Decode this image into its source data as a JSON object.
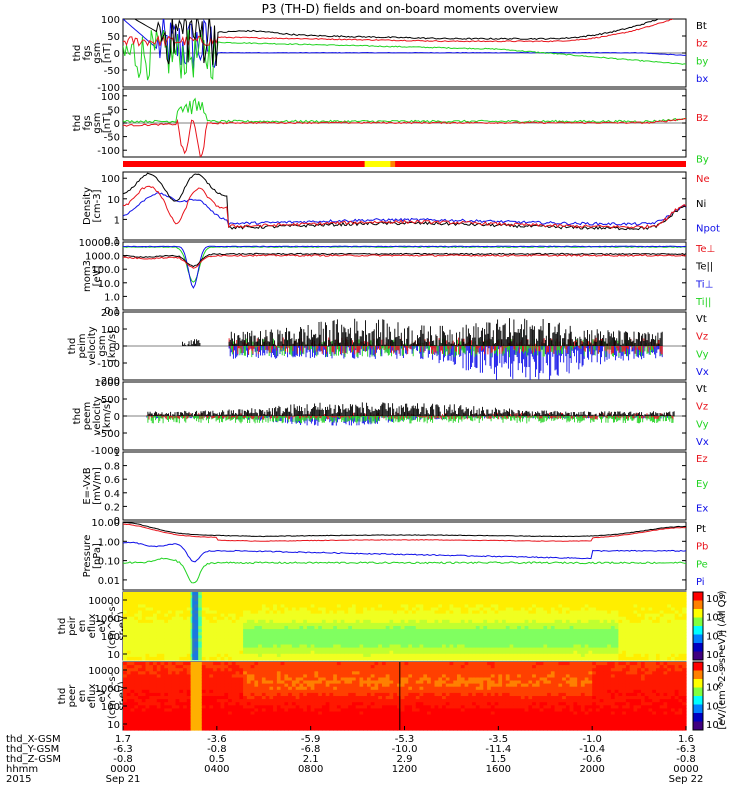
{
  "title": "P3 (TH-D) fields and on-board moments overview",
  "colors": {
    "black": "#000000",
    "red": "#e8141c",
    "green": "#21d321",
    "blue": "#1010e8",
    "bar_red": "#ff0000",
    "bar_yellow": "#ffff00"
  },
  "chart_data": [
    {
      "id": "fgs_gsm",
      "type": "line",
      "ylabel": [
        "thd",
        "fgs",
        "gsm",
        "[nT]"
      ],
      "yticks": [
        100,
        50,
        0,
        -50,
        -100
      ],
      "ylim": [
        -100,
        100
      ],
      "series": [
        {
          "name": "Bt",
          "color": "black",
          "profile": "bt"
        },
        {
          "name": "bz",
          "color": "red",
          "profile": "bz"
        },
        {
          "name": "by",
          "color": "green",
          "profile": "by"
        },
        {
          "name": "bx",
          "color": "blue",
          "profile": "bx"
        }
      ]
    },
    {
      "id": "fgs_gsm_zoom",
      "type": "line",
      "ylabel": [
        "thd",
        "fgs",
        "gsm",
        "[nT]"
      ],
      "yticks": [
        100,
        50,
        0,
        -50,
        -100
      ],
      "ylim": [
        -125,
        125
      ],
      "series": [
        {
          "name": "Bz",
          "color": "red",
          "profile": "bz2"
        },
        {
          "name": "By",
          "color": "green",
          "profile": "by2"
        }
      ]
    },
    {
      "id": "density",
      "type": "line",
      "scale": "log",
      "ylabel": [
        "Density",
        "[cm-3]"
      ],
      "yticks": [
        "100",
        "10",
        "1",
        "0.1"
      ],
      "ylim": [
        0.1,
        200
      ],
      "series": [
        {
          "name": "Ne",
          "color": "red",
          "profile": "ne"
        },
        {
          "name": "Ni",
          "color": "black",
          "profile": "ni"
        },
        {
          "name": "Npot",
          "color": "blue",
          "profile": "npot"
        }
      ]
    },
    {
      "id": "temperature",
      "type": "line",
      "scale": "log",
      "ylabel": [
        "mom3",
        "[eV]"
      ],
      "yticks": [
        "10000.0",
        "1000.0",
        "100.0",
        "10.0",
        "1.0",
        "0.1"
      ],
      "ylim": [
        0.1,
        10000
      ],
      "series": [
        {
          "name": "Te⊥",
          "color": "red",
          "profile": "teperp"
        },
        {
          "name": "Te||",
          "color": "black",
          "profile": "tepar"
        },
        {
          "name": "Ti⊥",
          "color": "blue",
          "profile": "tiperp"
        },
        {
          "name": "Ti||",
          "color": "green",
          "profile": "tipar"
        }
      ]
    },
    {
      "id": "ion_velocity",
      "type": "line",
      "ylabel": [
        "thd",
        "peim",
        "velocity",
        "gsm",
        "[km/s]"
      ],
      "yticks": [
        200,
        100,
        0,
        -100,
        -200
      ],
      "ylim": [
        -200,
        200
      ],
      "series": [
        {
          "name": "Vt",
          "color": "black",
          "profile": "vt"
        },
        {
          "name": "Vz",
          "color": "red",
          "profile": "vz"
        },
        {
          "name": "Vy",
          "color": "green",
          "profile": "vy"
        },
        {
          "name": "Vx",
          "color": "blue",
          "profile": "vx"
        }
      ]
    },
    {
      "id": "electron_velocity",
      "type": "line",
      "ylabel": [
        "thd",
        "peem",
        "velocity",
        "[km/s]"
      ],
      "yticks": [
        1000,
        500,
        0,
        -500,
        -1000
      ],
      "ylim": [
        -1000,
        1000
      ],
      "series": [
        {
          "name": "Vt",
          "color": "black",
          "profile": "vt2"
        },
        {
          "name": "Vz",
          "color": "red",
          "profile": "vz2"
        },
        {
          "name": "Vy",
          "color": "green",
          "profile": "vy2"
        },
        {
          "name": "Vx",
          "color": "blue",
          "profile": "vx2"
        }
      ]
    },
    {
      "id": "efield",
      "type": "line",
      "ylabel": [
        "E=-VxB",
        "[mV/m]"
      ],
      "yticks": [
        1.0,
        0.8,
        0.6,
        0.4,
        0.2,
        0.0
      ],
      "ylim": [
        0.0,
        1.0
      ],
      "series": [
        {
          "name": "Ez",
          "color": "red",
          "profile": "none"
        },
        {
          "name": "Ey",
          "color": "green",
          "profile": "none"
        },
        {
          "name": "Ex",
          "color": "blue",
          "profile": "none"
        }
      ]
    },
    {
      "id": "pressure",
      "type": "line",
      "scale": "log",
      "ylabel": [
        "Pressure",
        "[nPa]"
      ],
      "yticks": [
        "10.00",
        "1.00",
        "0.10",
        "0.01"
      ],
      "ylim": [
        0.003,
        10
      ],
      "series": [
        {
          "name": "Pt",
          "color": "black",
          "profile": "pt"
        },
        {
          "name": "Pb",
          "color": "red",
          "profile": "pb"
        },
        {
          "name": "Pe",
          "color": "green",
          "profile": "pe"
        },
        {
          "name": "Pi",
          "color": "blue",
          "profile": "pi"
        }
      ]
    },
    {
      "id": "ion_spectrogram",
      "type": "heatmap",
      "ylabel": [
        "thd",
        "peir",
        "en",
        "eflux",
        "eV",
        "(cm^2-s-",
        "sr-eV)"
      ],
      "yticks": [
        "10000",
        "1000",
        "100",
        "10"
      ],
      "colorbar_ticks": [
        "10^8",
        "10^6",
        "10^4",
        "10^2"
      ]
    },
    {
      "id": "electron_spectrogram",
      "type": "heatmap",
      "ylabel": [
        "thd",
        "peer",
        "en",
        "eflux",
        "eV",
        "(cm^2-s-",
        "sr-eV)"
      ],
      "yticks": [
        "10000",
        "1000",
        "100",
        "10"
      ],
      "colorbar_ticks": [
        "10^8",
        "10^6",
        "10^4",
        "10^2"
      ]
    }
  ],
  "colorbar_label": "[eV/(cm^2-s-sr-eV)] (All Qs)",
  "xaxis": {
    "rows": [
      {
        "label": "thd_X-GSM",
        "values": [
          "1.7",
          "-3.6",
          "-5.9",
          "-5.3",
          "-3.5",
          "-1.0",
          "1.6"
        ]
      },
      {
        "label": "thd_Y-GSM",
        "values": [
          "-6.3",
          "-0.8",
          "-6.8",
          "-10.0",
          "-11.4",
          "-10.4",
          "-6.3"
        ]
      },
      {
        "label": "thd_Z-GSM",
        "values": [
          "-0.8",
          "0.5",
          "2.1",
          "2.9",
          "1.5",
          "-0.6",
          "-0.8"
        ]
      },
      {
        "label": "hhmm",
        "values": [
          "0000",
          "0400",
          "0800",
          "1200",
          "1600",
          "2000",
          "0000"
        ]
      },
      {
        "label": "2015",
        "values": [
          "Sep 21",
          "",
          "",
          "",
          "",
          "",
          "Sep 22"
        ]
      }
    ],
    "hours": [
      0,
      4,
      8,
      12,
      16,
      20,
      24
    ]
  }
}
